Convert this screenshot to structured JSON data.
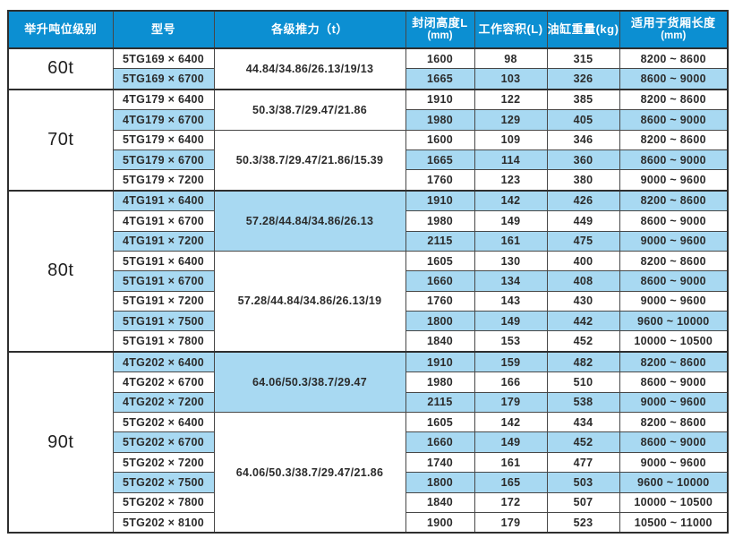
{
  "table": {
    "colors": {
      "header_bg": "#0c8fd2",
      "header_text": "#ffffff",
      "row_shaded_bg": "#a8d9f2",
      "border": "#474747",
      "border_dark": "#2e2e2e",
      "body_text": "#2b2b2b"
    },
    "headers": [
      {
        "label": "举升吨位级别",
        "sub": ""
      },
      {
        "label": "型号",
        "sub": ""
      },
      {
        "label": "各级推力（t）",
        "sub": ""
      },
      {
        "label": "封闭高度L",
        "sub": "(mm)"
      },
      {
        "label": "工作容积(L)",
        "sub": ""
      },
      {
        "label": "油缸重量(kg)",
        "sub": ""
      },
      {
        "label": "适用于货厢长度",
        "sub": "(mm)"
      }
    ],
    "tonnage_groups": [
      {
        "tonnage": "60t",
        "thrust_groups": [
          {
            "thrust": "44.84/34.86/26.13/19/13",
            "thrust_shaded": false,
            "rows": [
              {
                "model": "5TG169 × 6400",
                "closed_height_mm": "1600",
                "working_volume_l": "98",
                "cylinder_weight_kg": "315",
                "cargo_box_length_mm": "8200 ~ 8600",
                "shaded": false
              },
              {
                "model": "5TG169 × 6700",
                "closed_height_mm": "1665",
                "working_volume_l": "103",
                "cylinder_weight_kg": "326",
                "cargo_box_length_mm": "8600 ~ 9000",
                "shaded": true
              }
            ]
          }
        ]
      },
      {
        "tonnage": "70t",
        "thrust_groups": [
          {
            "thrust": "50.3/38.7/29.47/21.86",
            "thrust_shaded": false,
            "rows": [
              {
                "model": "4TG179 × 6400",
                "closed_height_mm": "1910",
                "working_volume_l": "122",
                "cylinder_weight_kg": "385",
                "cargo_box_length_mm": "8200 ~ 8600",
                "shaded": false
              },
              {
                "model": "4TG179 × 6700",
                "closed_height_mm": "1980",
                "working_volume_l": "129",
                "cylinder_weight_kg": "405",
                "cargo_box_length_mm": "8600 ~ 9000",
                "shaded": true
              }
            ]
          },
          {
            "thrust": "50.3/38.7/29.47/21.86/15.39",
            "thrust_shaded": false,
            "rows": [
              {
                "model": "5TG179 × 6400",
                "closed_height_mm": "1600",
                "working_volume_l": "109",
                "cylinder_weight_kg": "346",
                "cargo_box_length_mm": "8200 ~ 8600",
                "shaded": false
              },
              {
                "model": "5TG179 × 6700",
                "closed_height_mm": "1665",
                "working_volume_l": "114",
                "cylinder_weight_kg": "360",
                "cargo_box_length_mm": "8600 ~ 9000",
                "shaded": true
              },
              {
                "model": "5TG179 × 7200",
                "closed_height_mm": "1760",
                "working_volume_l": "123",
                "cylinder_weight_kg": "380",
                "cargo_box_length_mm": "9000 ~ 9600",
                "shaded": false
              }
            ]
          }
        ]
      },
      {
        "tonnage": "80t",
        "thrust_groups": [
          {
            "thrust": "57.28/44.84/34.86/26.13",
            "thrust_shaded": true,
            "rows": [
              {
                "model": "4TG191 × 6400",
                "closed_height_mm": "1910",
                "working_volume_l": "142",
                "cylinder_weight_kg": "426",
                "cargo_box_length_mm": "8200 ~ 8600",
                "shaded": true
              },
              {
                "model": "4TG191 × 6700",
                "closed_height_mm": "1980",
                "working_volume_l": "149",
                "cylinder_weight_kg": "449",
                "cargo_box_length_mm": "8600 ~ 9000",
                "shaded": false
              },
              {
                "model": "4TG191 × 7200",
                "closed_height_mm": "2115",
                "working_volume_l": "161",
                "cylinder_weight_kg": "475",
                "cargo_box_length_mm": "9000 ~ 9600",
                "shaded": true
              }
            ]
          },
          {
            "thrust": "57.28/44.84/34.86/26.13/19",
            "thrust_shaded": false,
            "rows": [
              {
                "model": "5TG191 × 6400",
                "closed_height_mm": "1605",
                "working_volume_l": "130",
                "cylinder_weight_kg": "400",
                "cargo_box_length_mm": "8200 ~ 8600",
                "shaded": false
              },
              {
                "model": "5TG191 × 6700",
                "closed_height_mm": "1660",
                "working_volume_l": "134",
                "cylinder_weight_kg": "408",
                "cargo_box_length_mm": "8600 ~ 9000",
                "shaded": true
              },
              {
                "model": "5TG191 × 7200",
                "closed_height_mm": "1760",
                "working_volume_l": "143",
                "cylinder_weight_kg": "430",
                "cargo_box_length_mm": "9000 ~ 9600",
                "shaded": false
              },
              {
                "model": "5TG191 × 7500",
                "closed_height_mm": "1800",
                "working_volume_l": "149",
                "cylinder_weight_kg": "442",
                "cargo_box_length_mm": "9600 ~ 10000",
                "shaded": true
              },
              {
                "model": "5TG191 × 7800",
                "closed_height_mm": "1840",
                "working_volume_l": "153",
                "cylinder_weight_kg": "452",
                "cargo_box_length_mm": "10000 ~ 10500",
                "shaded": false
              }
            ]
          }
        ]
      },
      {
        "tonnage": "90t",
        "thrust_groups": [
          {
            "thrust": "64.06/50.3/38.7/29.47",
            "thrust_shaded": true,
            "rows": [
              {
                "model": "4TG202 × 6400",
                "closed_height_mm": "1910",
                "working_volume_l": "159",
                "cylinder_weight_kg": "482",
                "cargo_box_length_mm": "8200 ~ 8600",
                "shaded": true
              },
              {
                "model": "4TG202 × 6700",
                "closed_height_mm": "1980",
                "working_volume_l": "166",
                "cylinder_weight_kg": "510",
                "cargo_box_length_mm": "8600 ~ 9000",
                "shaded": false
              },
              {
                "model": "4TG202 × 7200",
                "closed_height_mm": "2115",
                "working_volume_l": "179",
                "cylinder_weight_kg": "538",
                "cargo_box_length_mm": "9000 ~ 9600",
                "shaded": true
              }
            ]
          },
          {
            "thrust": "64.06/50.3/38.7/29.47/21.86",
            "thrust_shaded": false,
            "rows": [
              {
                "model": "5TG202 × 6400",
                "closed_height_mm": "1605",
                "working_volume_l": "142",
                "cylinder_weight_kg": "434",
                "cargo_box_length_mm": "8200 ~ 8600",
                "shaded": false
              },
              {
                "model": "5TG202 × 6700",
                "closed_height_mm": "1660",
                "working_volume_l": "149",
                "cylinder_weight_kg": "452",
                "cargo_box_length_mm": "8600 ~ 9000",
                "shaded": true
              },
              {
                "model": "5TG202 × 7200",
                "closed_height_mm": "1740",
                "working_volume_l": "161",
                "cylinder_weight_kg": "477",
                "cargo_box_length_mm": "9000 ~ 9600",
                "shaded": false
              },
              {
                "model": "5TG202 × 7500",
                "closed_height_mm": "1800",
                "working_volume_l": "165",
                "cylinder_weight_kg": "503",
                "cargo_box_length_mm": "9600 ~ 10000",
                "shaded": true
              },
              {
                "model": "5TG202 × 7800",
                "closed_height_mm": "1840",
                "working_volume_l": "172",
                "cylinder_weight_kg": "507",
                "cargo_box_length_mm": "10000 ~ 10500",
                "shaded": false
              },
              {
                "model": "5TG202 × 8100",
                "closed_height_mm": "1900",
                "working_volume_l": "179",
                "cylinder_weight_kg": "523",
                "cargo_box_length_mm": "10500 ~ 11000",
                "shaded": false
              }
            ]
          }
        ]
      }
    ]
  }
}
